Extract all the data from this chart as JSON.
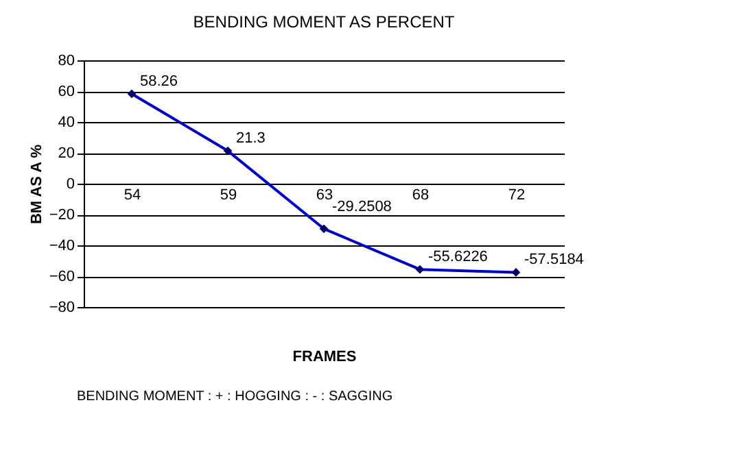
{
  "chart_data": {
    "type": "line",
    "title": "BENDING MOMENT AS PERCENT",
    "xlabel": "FRAMES",
    "ylabel": "BM AS A %",
    "categories": [
      "54",
      "59",
      "63",
      "68",
      "72"
    ],
    "series": [
      {
        "color": "#0000cc",
        "values": [
          58.26,
          21.3,
          -29.2508,
          -55.6226,
          -57.5184
        ]
      }
    ],
    "ylim": [
      -80,
      80
    ],
    "yticks": [
      -80,
      -60,
      -40,
      -20,
      0,
      20,
      40,
      60,
      80
    ],
    "grid": "y",
    "marker": "diamond",
    "line_style": "solid",
    "data_labels": true,
    "annotations": [
      "BENDING MOMENT : + : HOGGING   : - : SAGGING"
    ]
  }
}
